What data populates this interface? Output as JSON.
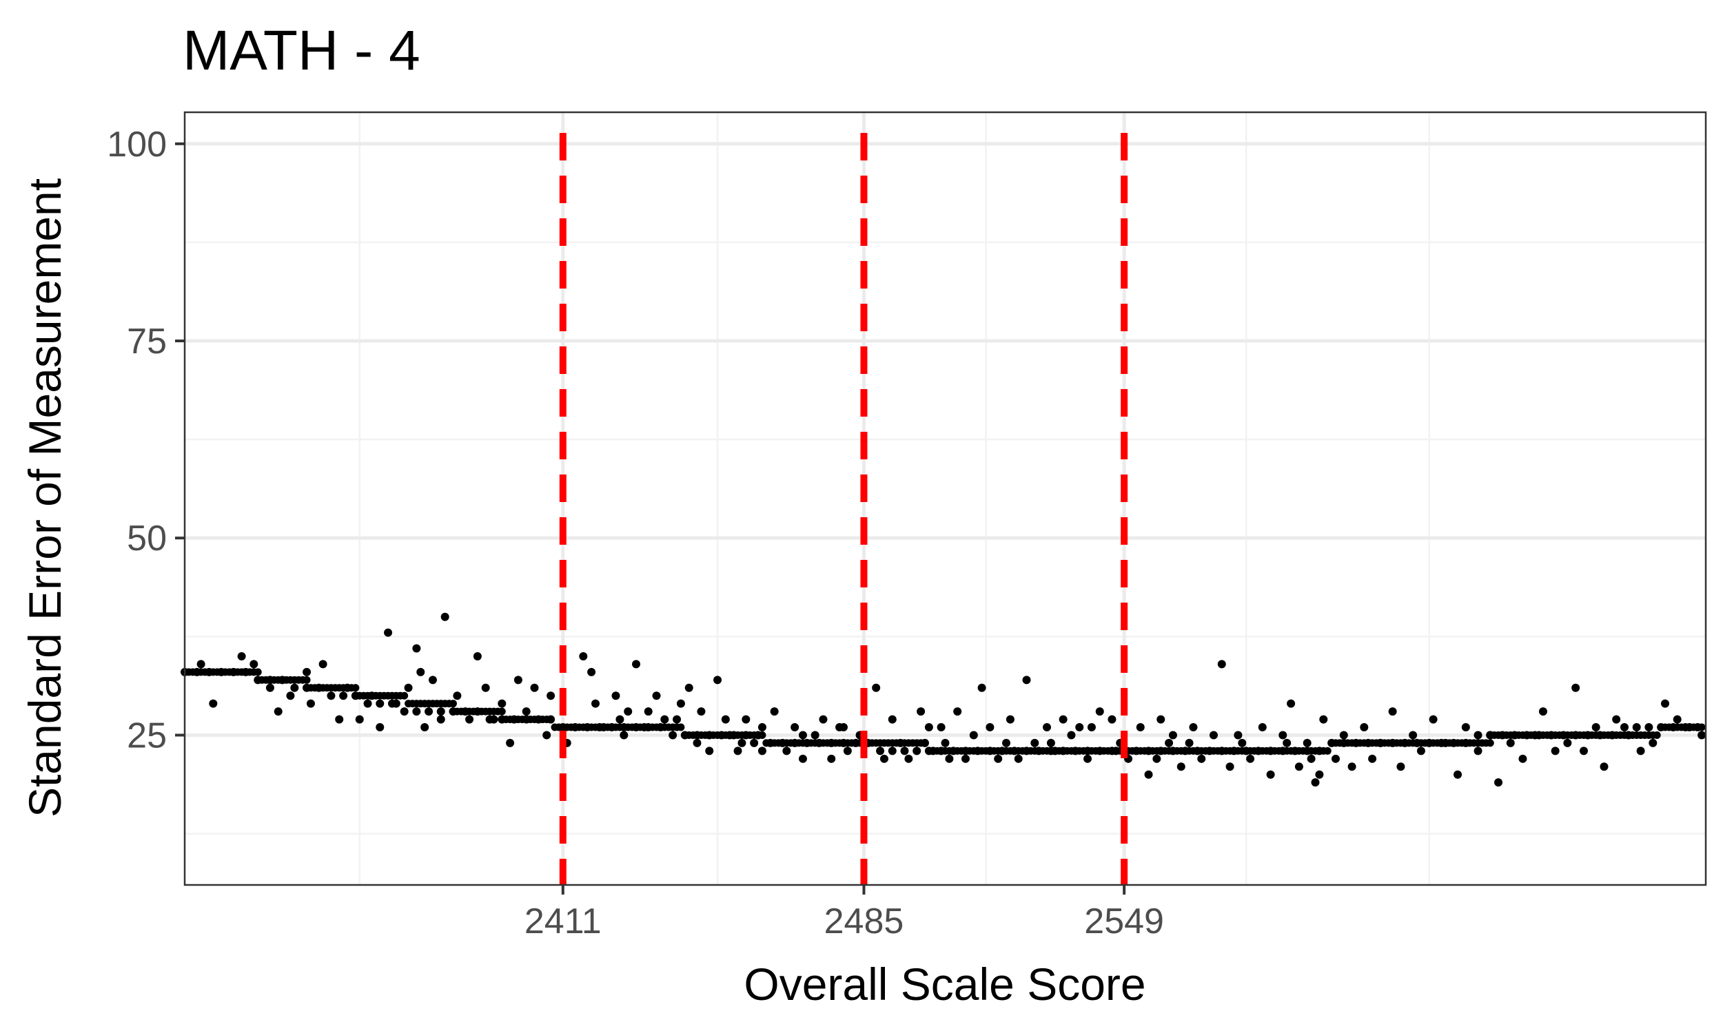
{
  "chart_data": {
    "type": "scatter",
    "title": "MATH - 4",
    "xlabel": "Overall Scale Score",
    "ylabel": "Standard Error of Measurement",
    "xlim": [
      2318,
      2692
    ],
    "ylim": [
      6,
      104
    ],
    "x_ticks": [
      2411,
      2485,
      2549
    ],
    "x_minor_grid": [
      2361,
      2449,
      2515,
      2579,
      2624
    ],
    "y_ticks": [
      25,
      50,
      75,
      100
    ],
    "y_minor_grid": [
      12.5,
      37.5,
      62.5,
      87.5
    ],
    "grid": true,
    "legend": "none",
    "vlines": [
      {
        "x": 2411,
        "color": "#ff0000",
        "style": "dashed"
      },
      {
        "x": 2485,
        "color": "#ff0000",
        "style": "dashed"
      },
      {
        "x": 2549,
        "color": "#ff0000",
        "style": "dashed"
      }
    ],
    "trend": [
      [
        2318,
        33
      ],
      [
        2330,
        33
      ],
      [
        2342,
        32
      ],
      [
        2354,
        31
      ],
      [
        2366,
        30
      ],
      [
        2378,
        29
      ],
      [
        2390,
        28
      ],
      [
        2402,
        27
      ],
      [
        2414,
        26
      ],
      [
        2430,
        26
      ],
      [
        2450,
        25
      ],
      [
        2470,
        24
      ],
      [
        2490,
        24
      ],
      [
        2510,
        23
      ],
      [
        2530,
        23
      ],
      [
        2550,
        23
      ],
      [
        2570,
        23
      ],
      [
        2590,
        23
      ],
      [
        2610,
        24
      ],
      [
        2630,
        24
      ],
      [
        2650,
        25
      ],
      [
        2670,
        25
      ],
      [
        2692,
        26
      ]
    ],
    "points": [
      [
        2318,
        33
      ],
      [
        2321,
        33
      ],
      [
        2324,
        33
      ],
      [
        2327,
        33
      ],
      [
        2330,
        33
      ],
      [
        2333,
        33
      ],
      [
        2336,
        32
      ],
      [
        2339,
        32
      ],
      [
        2342,
        32
      ],
      [
        2345,
        31
      ],
      [
        2348,
        31
      ],
      [
        2351,
        31
      ],
      [
        2354,
        30
      ],
      [
        2357,
        30
      ],
      [
        2360,
        30
      ],
      [
        2363,
        29
      ],
      [
        2366,
        29
      ],
      [
        2369,
        29
      ],
      [
        2372,
        28
      ],
      [
        2375,
        28
      ],
      [
        2378,
        28
      ],
      [
        2381,
        28
      ],
      [
        2384,
        28
      ],
      [
        2387,
        28
      ],
      [
        2390,
        28
      ],
      [
        2393,
        27
      ],
      [
        2396,
        27
      ],
      [
        2399,
        27
      ],
      [
        2402,
        27
      ],
      [
        2405,
        27
      ],
      [
        2408,
        27
      ],
      [
        2411,
        26
      ],
      [
        2414,
        26
      ],
      [
        2417,
        26
      ],
      [
        2420,
        26
      ],
      [
        2423,
        26
      ],
      [
        2426,
        26
      ],
      [
        2429,
        26
      ],
      [
        2432,
        26
      ],
      [
        2435,
        26
      ],
      [
        2438,
        25
      ],
      [
        2441,
        25
      ],
      [
        2444,
        25
      ],
      [
        2447,
        25
      ],
      [
        2450,
        25
      ],
      [
        2453,
        25
      ],
      [
        2456,
        25
      ],
      [
        2459,
        25
      ],
      [
        2462,
        24
      ],
      [
        2465,
        24
      ],
      [
        2468,
        24
      ],
      [
        2471,
        24
      ],
      [
        2474,
        24
      ],
      [
        2477,
        24
      ],
      [
        2480,
        24
      ],
      [
        2483,
        24
      ],
      [
        2486,
        24
      ],
      [
        2489,
        23
      ],
      [
        2492,
        23
      ],
      [
        2495,
        23
      ],
      [
        2498,
        23
      ],
      [
        2501,
        23
      ],
      [
        2504,
        23
      ],
      [
        2507,
        23
      ],
      [
        2510,
        23
      ],
      [
        2513,
        23
      ],
      [
        2516,
        23
      ],
      [
        2519,
        23
      ],
      [
        2522,
        23
      ],
      [
        2525,
        23
      ],
      [
        2528,
        23
      ],
      [
        2531,
        23
      ],
      [
        2534,
        23
      ],
      [
        2537,
        23
      ],
      [
        2540,
        23
      ],
      [
        2543,
        23
      ],
      [
        2546,
        23
      ],
      [
        2549,
        23
      ],
      [
        2552,
        23
      ],
      [
        2555,
        23
      ],
      [
        2558,
        23
      ],
      [
        2561,
        23
      ],
      [
        2564,
        23
      ],
      [
        2567,
        23
      ],
      [
        2570,
        23
      ],
      [
        2573,
        23
      ],
      [
        2576,
        23
      ],
      [
        2579,
        23
      ],
      [
        2582,
        23
      ],
      [
        2585,
        23
      ],
      [
        2588,
        23
      ],
      [
        2591,
        23
      ],
      [
        2594,
        23
      ],
      [
        2597,
        23
      ],
      [
        2600,
        24
      ],
      [
        2603,
        24
      ],
      [
        2606,
        24
      ],
      [
        2609,
        24
      ],
      [
        2612,
        24
      ],
      [
        2615,
        24
      ],
      [
        2618,
        24
      ],
      [
        2621,
        24
      ],
      [
        2624,
        24
      ],
      [
        2627,
        24
      ],
      [
        2630,
        24
      ],
      [
        2633,
        24
      ],
      [
        2636,
        25
      ],
      [
        2639,
        25
      ],
      [
        2642,
        25
      ],
      [
        2645,
        25
      ],
      [
        2648,
        25
      ],
      [
        2651,
        25
      ],
      [
        2654,
        25
      ],
      [
        2657,
        25
      ],
      [
        2660,
        25
      ],
      [
        2663,
        25
      ],
      [
        2666,
        25
      ],
      [
        2669,
        25
      ],
      [
        2672,
        26
      ],
      [
        2675,
        26
      ],
      [
        2678,
        26
      ],
      [
        2681,
        26
      ],
      [
        2684,
        26
      ],
      [
        2687,
        26
      ],
      [
        2690,
        26
      ],
      [
        2322,
        34
      ],
      [
        2325,
        29
      ],
      [
        2332,
        35
      ],
      [
        2335,
        34
      ],
      [
        2339,
        31
      ],
      [
        2341,
        28
      ],
      [
        2344,
        30
      ],
      [
        2348,
        33
      ],
      [
        2349,
        29
      ],
      [
        2352,
        34
      ],
      [
        2356,
        27
      ],
      [
        2358,
        31
      ],
      [
        2361,
        27
      ],
      [
        2364,
        30
      ],
      [
        2366,
        26
      ],
      [
        2368,
        38
      ],
      [
        2370,
        29
      ],
      [
        2373,
        31
      ],
      [
        2375,
        36
      ],
      [
        2376,
        33
      ],
      [
        2377,
        26
      ],
      [
        2379,
        32
      ],
      [
        2381,
        27
      ],
      [
        2382,
        40
      ],
      [
        2385,
        30
      ],
      [
        2388,
        27
      ],
      [
        2390,
        35
      ],
      [
        2392,
        31
      ],
      [
        2394,
        27
      ],
      [
        2396,
        29
      ],
      [
        2398,
        24
      ],
      [
        2400,
        32
      ],
      [
        2402,
        28
      ],
      [
        2404,
        31
      ],
      [
        2407,
        25
      ],
      [
        2408,
        30
      ],
      [
        2416,
        35
      ],
      [
        2418,
        33
      ],
      [
        2419,
        29
      ],
      [
        2421,
        26
      ],
      [
        2424,
        30
      ],
      [
        2426,
        25
      ],
      [
        2427,
        28
      ],
      [
        2429,
        34
      ],
      [
        2431,
        26
      ],
      [
        2434,
        30
      ],
      [
        2436,
        27
      ],
      [
        2440,
        29
      ],
      [
        2442,
        31
      ],
      [
        2444,
        24
      ],
      [
        2447,
        23
      ],
      [
        2449,
        32
      ],
      [
        2452,
        25
      ],
      [
        2454,
        23
      ],
      [
        2456,
        27
      ],
      [
        2458,
        24
      ],
      [
        2460,
        26
      ],
      [
        2463,
        28
      ],
      [
        2466,
        23
      ],
      [
        2468,
        26
      ],
      [
        2470,
        22
      ],
      [
        2473,
        25
      ],
      [
        2475,
        27
      ],
      [
        2477,
        22
      ],
      [
        2479,
        26
      ],
      [
        2481,
        23
      ],
      [
        2484,
        25
      ],
      [
        2488,
        31
      ],
      [
        2490,
        22
      ],
      [
        2492,
        27
      ],
      [
        2494,
        24
      ],
      [
        2496,
        22
      ],
      [
        2499,
        28
      ],
      [
        2502,
        23
      ],
      [
        2504,
        26
      ],
      [
        2506,
        22
      ],
      [
        2508,
        28
      ],
      [
        2510,
        22
      ],
      [
        2512,
        25
      ],
      [
        2514,
        31
      ],
      [
        2516,
        26
      ],
      [
        2518,
        22
      ],
      [
        2521,
        27
      ],
      [
        2523,
        22
      ],
      [
        2525,
        32
      ],
      [
        2527,
        24
      ],
      [
        2530,
        26
      ],
      [
        2532,
        23
      ],
      [
        2534,
        27
      ],
      [
        2536,
        25
      ],
      [
        2538,
        26
      ],
      [
        2540,
        22
      ],
      [
        2543,
        28
      ],
      [
        2546,
        27
      ],
      [
        2548,
        24
      ],
      [
        2550,
        22
      ],
      [
        2553,
        26
      ],
      [
        2555,
        20
      ],
      [
        2558,
        27
      ],
      [
        2560,
        24
      ],
      [
        2563,
        21
      ],
      [
        2566,
        26
      ],
      [
        2568,
        22
      ],
      [
        2571,
        25
      ],
      [
        2573,
        34
      ],
      [
        2575,
        21
      ],
      [
        2578,
        24
      ],
      [
        2580,
        22
      ],
      [
        2583,
        26
      ],
      [
        2585,
        20
      ],
      [
        2588,
        25
      ],
      [
        2590,
        29
      ],
      [
        2592,
        21
      ],
      [
        2594,
        24
      ],
      [
        2596,
        19
      ],
      [
        2598,
        27
      ],
      [
        2601,
        22
      ],
      [
        2603,
        25
      ],
      [
        2605,
        21
      ],
      [
        2608,
        26
      ],
      [
        2610,
        22
      ],
      [
        2612,
        24
      ],
      [
        2615,
        28
      ],
      [
        2617,
        21
      ],
      [
        2620,
        25
      ],
      [
        2622,
        23
      ],
      [
        2625,
        27
      ],
      [
        2628,
        24
      ],
      [
        2631,
        20
      ],
      [
        2633,
        26
      ],
      [
        2636,
        23
      ],
      [
        2639,
        25
      ],
      [
        2641,
        19
      ],
      [
        2644,
        24
      ],
      [
        2647,
        22
      ],
      [
        2650,
        25
      ],
      [
        2652,
        28
      ],
      [
        2655,
        23
      ],
      [
        2658,
        24
      ],
      [
        2660,
        31
      ],
      [
        2662,
        23
      ],
      [
        2665,
        26
      ],
      [
        2667,
        21
      ],
      [
        2670,
        27
      ],
      [
        2673,
        25
      ],
      [
        2676,
        23
      ],
      [
        2679,
        24
      ],
      [
        2682,
        29
      ],
      [
        2685,
        27
      ],
      [
        2688,
        26
      ],
      [
        2691,
        25
      ],
      [
        2451,
        27
      ],
      [
        2439,
        27
      ],
      [
        2501,
        26
      ],
      [
        2541,
        26
      ],
      [
        2561,
        25
      ],
      [
        2589,
        24
      ],
      [
        2595,
        22
      ],
      [
        2597,
        20
      ],
      [
        2500,
        24
      ],
      [
        2505,
        24
      ],
      [
        2520,
        24
      ],
      [
        2531,
        24
      ],
      [
        2547,
        23
      ],
      [
        2557,
        22
      ],
      [
        2565,
        24
      ],
      [
        2577,
        25
      ],
      [
        2480,
        26
      ],
      [
        2470,
        25
      ],
      [
        2460,
        23
      ],
      [
        2455,
        24
      ],
      [
        2445,
        28
      ],
      [
        2432,
        28
      ],
      [
        2425,
        27
      ],
      [
        2412,
        24
      ]
    ]
  }
}
